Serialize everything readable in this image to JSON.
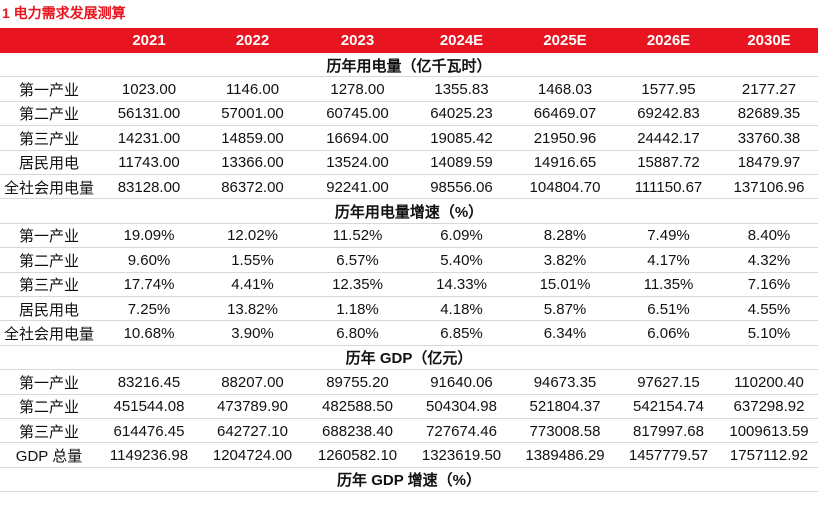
{
  "title": "1  电力需求发展测算",
  "table": {
    "header": [
      "2021",
      "2022",
      "2023",
      "2024E",
      "2025E",
      "2026E",
      "2030E"
    ],
    "sections": [
      {
        "title": "历年用电量（亿千瓦时）",
        "rows": [
          [
            "第一产业",
            "1023.00",
            "1146.00",
            "1278.00",
            "1355.83",
            "1468.03",
            "1577.95",
            "2177.27"
          ],
          [
            "第二产业",
            "56131.00",
            "57001.00",
            "60745.00",
            "64025.23",
            "66469.07",
            "69242.83",
            "82689.35"
          ],
          [
            "第三产业",
            "14231.00",
            "14859.00",
            "16694.00",
            "19085.42",
            "21950.96",
            "24442.17",
            "33760.38"
          ],
          [
            "居民用电",
            "11743.00",
            "13366.00",
            "13524.00",
            "14089.59",
            "14916.65",
            "15887.72",
            "18479.97"
          ],
          [
            "全社会用电量",
            "83128.00",
            "86372.00",
            "92241.00",
            "98556.06",
            "104804.70",
            "111150.67",
            "137106.96"
          ]
        ]
      },
      {
        "title": "历年用电量增速（%）",
        "rows": [
          [
            "第一产业",
            "19.09%",
            "12.02%",
            "11.52%",
            "6.09%",
            "8.28%",
            "7.49%",
            "8.40%"
          ],
          [
            "第二产业",
            "9.60%",
            "1.55%",
            "6.57%",
            "5.40%",
            "3.82%",
            "4.17%",
            "4.32%"
          ],
          [
            "第三产业",
            "17.74%",
            "4.41%",
            "12.35%",
            "14.33%",
            "15.01%",
            "11.35%",
            "7.16%"
          ],
          [
            "居民用电",
            "7.25%",
            "13.82%",
            "1.18%",
            "4.18%",
            "5.87%",
            "6.51%",
            "4.55%"
          ],
          [
            "全社会用电量",
            "10.68%",
            "3.90%",
            "6.80%",
            "6.85%",
            "6.34%",
            "6.06%",
            "5.10%"
          ]
        ]
      },
      {
        "title": "历年 GDP（亿元）",
        "rows": [
          [
            "第一产业",
            "83216.45",
            "88207.00",
            "89755.20",
            "91640.06",
            "94673.35",
            "97627.15",
            "110200.40"
          ],
          [
            "第二产业",
            "451544.08",
            "473789.90",
            "482588.50",
            "504304.98",
            "521804.37",
            "542154.74",
            "637298.92"
          ],
          [
            "第三产业",
            "614476.45",
            "642727.10",
            "688238.40",
            "727674.46",
            "773008.58",
            "817997.68",
            "1009613.59"
          ],
          [
            "GDP 总量",
            "1149236.98",
            "1204724.00",
            "1260582.10",
            "1323619.50",
            "1389486.29",
            "1457779.57",
            "1757112.92"
          ]
        ]
      },
      {
        "title": "历年 GDP 增速（%）",
        "rows": []
      }
    ]
  }
}
